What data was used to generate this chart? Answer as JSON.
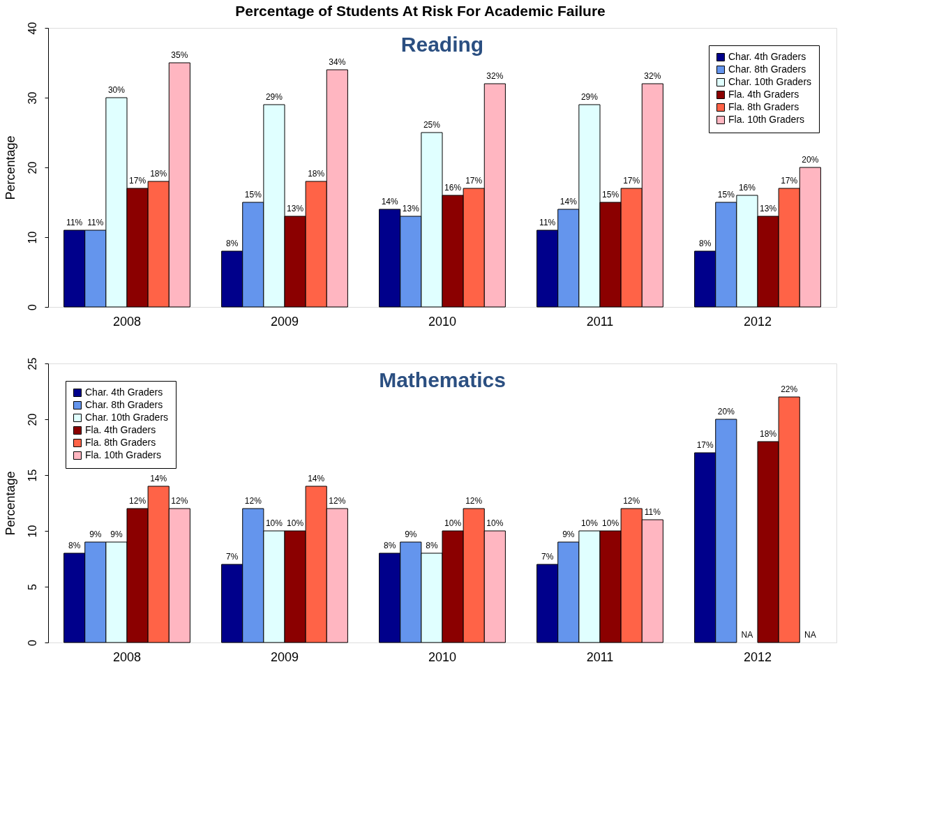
{
  "chart_data": [
    {
      "type": "bar",
      "title": "Percentage of Students At Risk For Academic Failure",
      "subtitle": "Reading",
      "ylabel": "Percentage",
      "categories": [
        "2008",
        "2009",
        "2010",
        "2011",
        "2012"
      ],
      "ylim": [
        0,
        40
      ],
      "yticks": [
        0,
        10,
        20,
        30,
        40
      ],
      "grid": false,
      "legend": "top right",
      "series": [
        {
          "name": "Char. 4th Graders",
          "color": "#00008b",
          "values": [
            11,
            8,
            14,
            11,
            8
          ],
          "value_labels": [
            "11%",
            "8%",
            "14%",
            "11%",
            "8%"
          ]
        },
        {
          "name": "Char. 8th Graders",
          "color": "#6495ed",
          "values": [
            11,
            15,
            13,
            14,
            15
          ],
          "value_labels": [
            "11%",
            "15%",
            "13%",
            "14%",
            "15%"
          ]
        },
        {
          "name": "Char. 10th Graders",
          "color": "#e0ffff",
          "values": [
            30,
            29,
            25,
            29,
            16
          ],
          "value_labels": [
            "30%",
            "29%",
            "25%",
            "29%",
            "16%"
          ]
        },
        {
          "name": "Fla. 4th Graders",
          "color": "#8b0000",
          "values": [
            17,
            13,
            16,
            15,
            13
          ],
          "value_labels": [
            "17%",
            "13%",
            "16%",
            "15%",
            "13%"
          ]
        },
        {
          "name": "Fla. 8th Graders",
          "color": "#ff6347",
          "values": [
            18,
            18,
            17,
            17,
            17
          ],
          "value_labels": [
            "18%",
            "18%",
            "17%",
            "17%",
            "17%"
          ]
        },
        {
          "name": "Fla. 10th Graders",
          "color": "#ffb6c1",
          "values": [
            35,
            34,
            32,
            32,
            20
          ],
          "value_labels": [
            "35%",
            "34%",
            "32%",
            "32%",
            "20%"
          ]
        }
      ]
    },
    {
      "type": "bar",
      "subtitle": "Mathematics",
      "ylabel": "Percentage",
      "categories": [
        "2008",
        "2009",
        "2010",
        "2011",
        "2012"
      ],
      "ylim": [
        0,
        25
      ],
      "yticks": [
        0,
        5,
        10,
        15,
        20,
        25
      ],
      "grid": false,
      "legend": "top left",
      "series": [
        {
          "name": "Char. 4th Graders",
          "color": "#00008b",
          "values": [
            8,
            7,
            8,
            7,
            17
          ],
          "value_labels": [
            "8%",
            "7%",
            "8%",
            "7%",
            "17%"
          ]
        },
        {
          "name": "Char. 8th Graders",
          "color": "#6495ed",
          "values": [
            9,
            12,
            9,
            9,
            20
          ],
          "value_labels": [
            "9%",
            "12%",
            "9%",
            "9%",
            "20%"
          ]
        },
        {
          "name": "Char. 10th Graders",
          "color": "#e0ffff",
          "values": [
            9,
            10,
            8,
            10,
            null
          ],
          "value_labels": [
            "9%",
            "10%",
            "8%",
            "10%",
            "NA"
          ]
        },
        {
          "name": "Fla. 4th Graders",
          "color": "#8b0000",
          "values": [
            12,
            10,
            10,
            10,
            18
          ],
          "value_labels": [
            "12%",
            "10%",
            "10%",
            "10%",
            "18%"
          ]
        },
        {
          "name": "Fla. 8th Graders",
          "color": "#ff6347",
          "values": [
            14,
            14,
            12,
            12,
            22
          ],
          "value_labels": [
            "14%",
            "14%",
            "12%",
            "12%",
            "22%"
          ]
        },
        {
          "name": "Fla. 10th Graders",
          "color": "#ffb6c1",
          "values": [
            12,
            12,
            10,
            11,
            null
          ],
          "value_labels": [
            "12%",
            "12%",
            "10%",
            "11%",
            "NA"
          ]
        }
      ]
    }
  ]
}
